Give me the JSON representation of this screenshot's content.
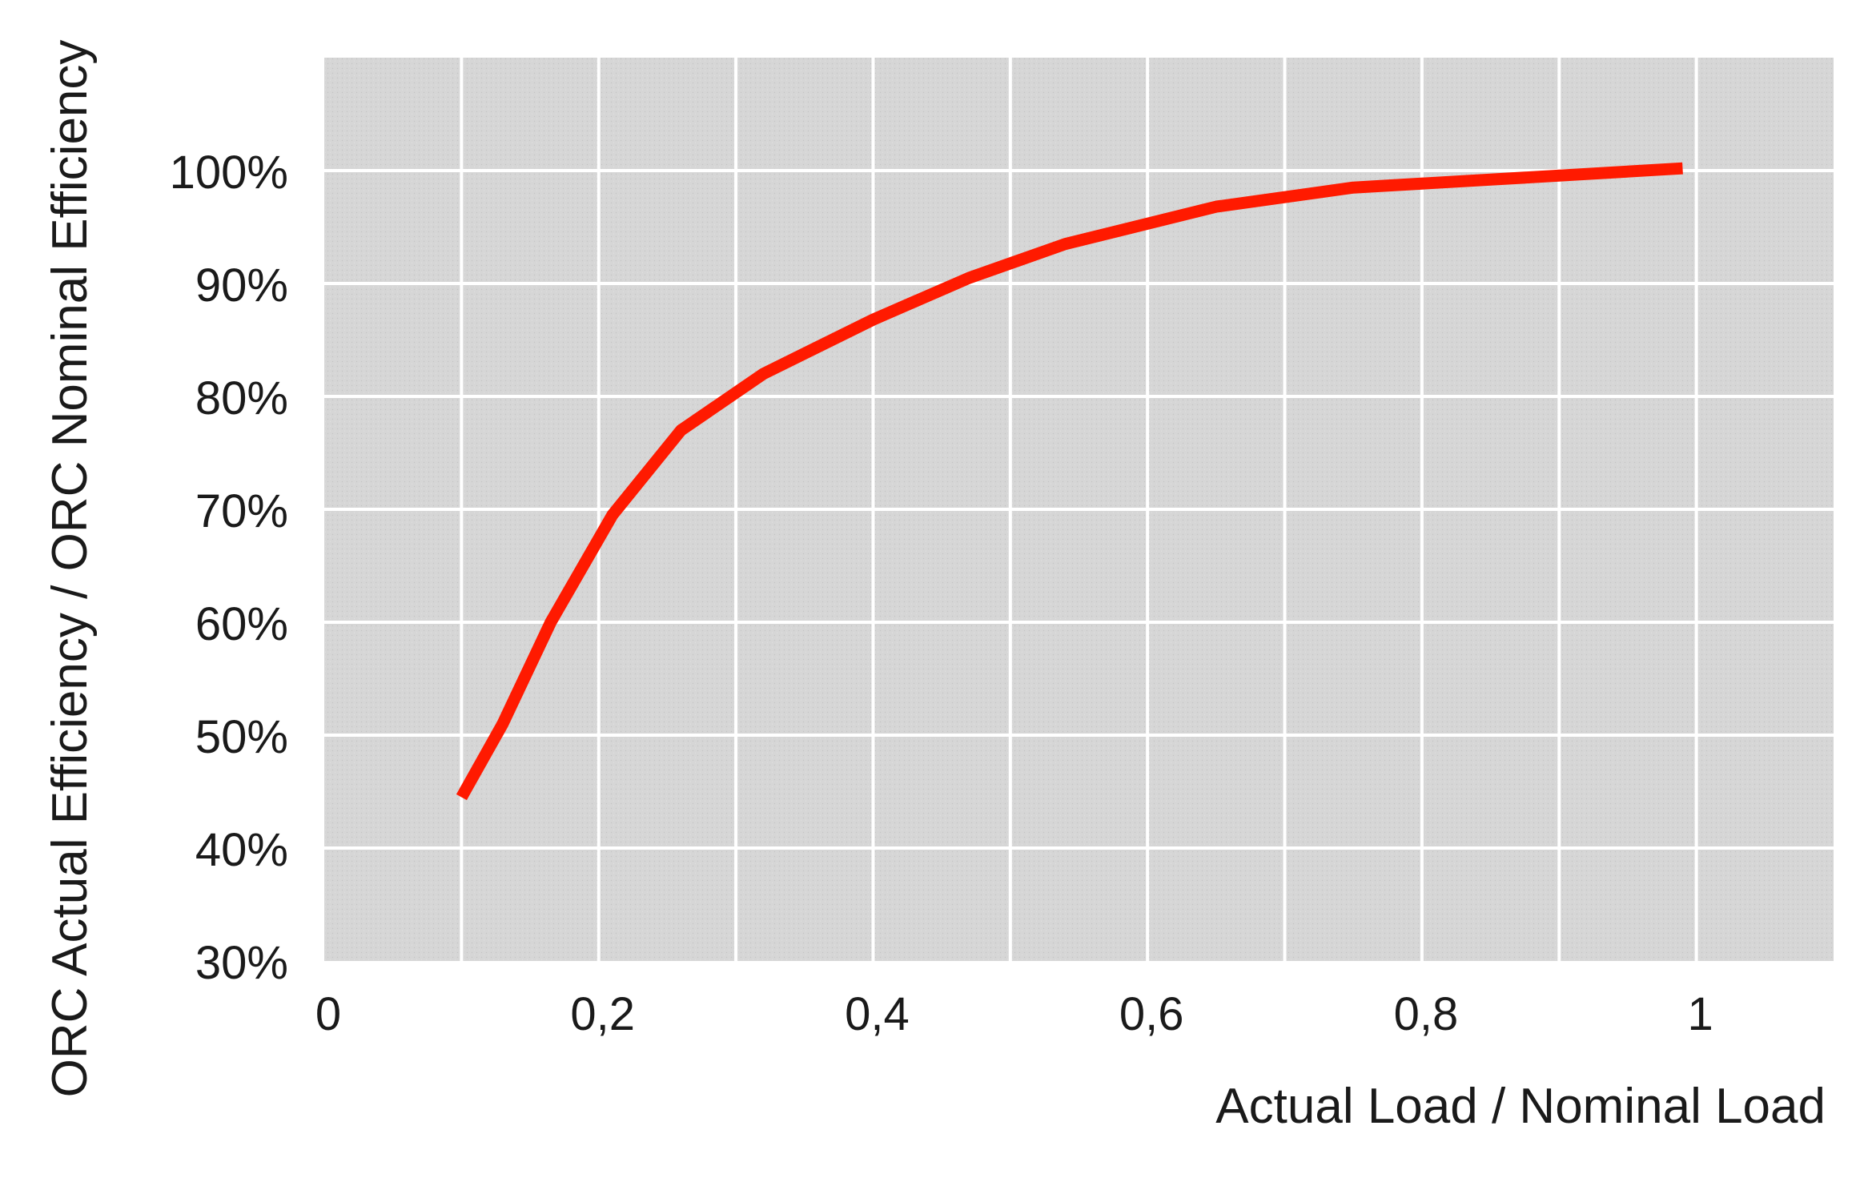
{
  "chart_data": {
    "type": "line",
    "title": "",
    "xlabel": "Actual Load / Nominal Load",
    "ylabel": "ORC Actual Efficiency / ORC Nominal Efficiency",
    "xlim": [
      0,
      1.1
    ],
    "ylim": [
      30,
      110
    ],
    "x_ticks": [
      0,
      0.2,
      0.4,
      0.6,
      0.8,
      1
    ],
    "x_tick_labels": [
      "0",
      "0,2",
      "0,4",
      "0,6",
      "0,8",
      "1"
    ],
    "y_ticks": [
      30,
      40,
      50,
      60,
      70,
      80,
      90,
      100
    ],
    "y_tick_labels": [
      "30%",
      "40%",
      "50%",
      "60%",
      "70%",
      "80%",
      "90%",
      "100%"
    ],
    "grid": true,
    "legend": "none",
    "series": [
      {
        "color": "#ff1a00",
        "x": [
          0.1,
          0.13,
          0.165,
          0.21,
          0.26,
          0.32,
          0.4,
          0.47,
          0.54,
          0.65,
          0.75,
          0.85,
          0.99
        ],
        "y": [
          44.5,
          51,
          60,
          69.5,
          77,
          82,
          86.8,
          90.5,
          93.5,
          96.8,
          98.5,
          99.2,
          100.2
        ]
      }
    ],
    "colors": {
      "plot_background": "#d6d6d6",
      "gridline": "#ffffff",
      "line": "#ff1a00"
    }
  }
}
